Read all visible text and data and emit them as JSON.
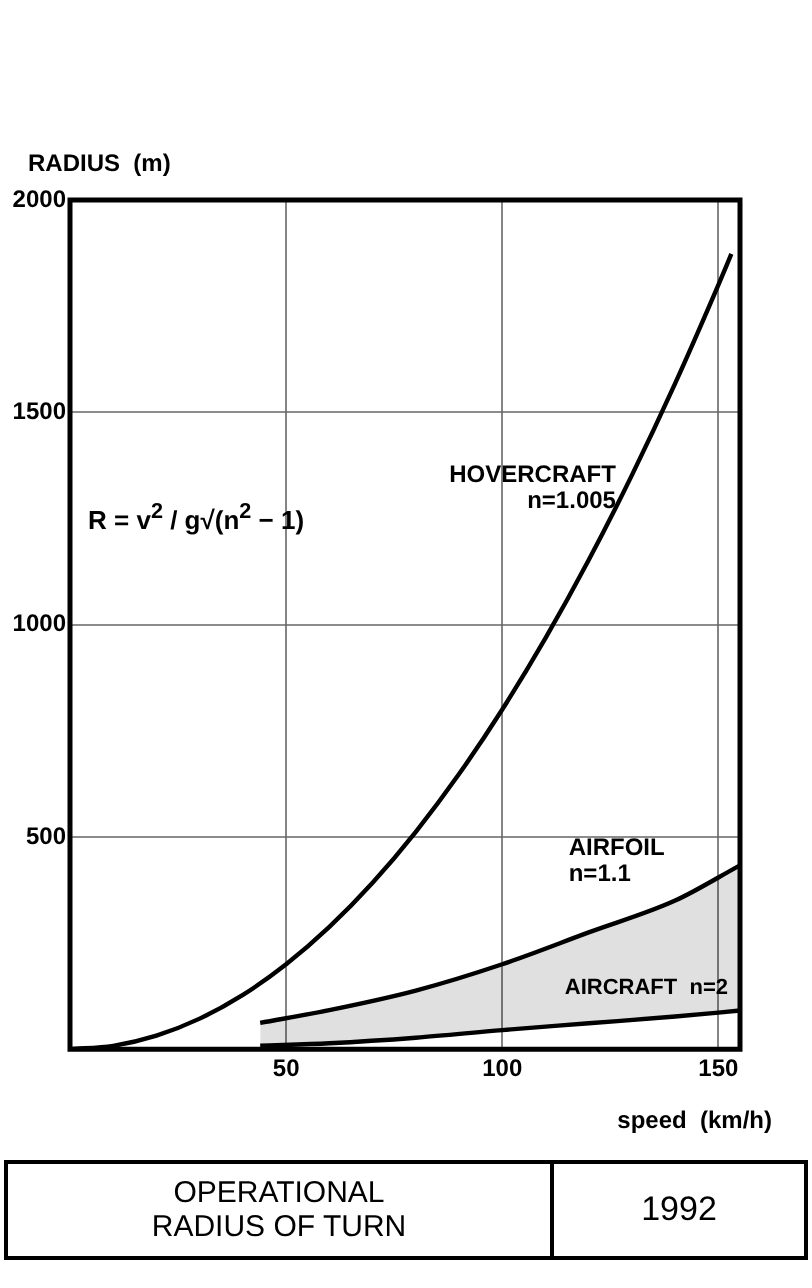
{
  "chart_data": {
    "type": "line",
    "title": "OPERATIONAL\nRADIUS OF TURN",
    "subtitle": "1992",
    "xlabel": "speed  (km/h)",
    "ylabel": "RADIUS  (m)",
    "xlim": [
      0,
      155
    ],
    "xticks": [
      50,
      100,
      150
    ],
    "ylim": [
      0,
      2000
    ],
    "yticks": [
      500,
      1000,
      1500,
      2000
    ],
    "grid": true,
    "legend": false,
    "marker": "none",
    "series": [
      {
        "name": "HOVERCRAFT\nn=1.005",
        "color": "#000000",
        "x": [
          0,
          10,
          20,
          30,
          40,
          50,
          60,
          70,
          80,
          90,
          100,
          110,
          120,
          130,
          140,
          150,
          153
        ],
        "values": [
          0,
          8,
          32,
          72,
          128,
          200,
          288,
          392,
          512,
          648,
          800,
          968,
          1152,
          1352,
          1568,
          1800,
          1873
        ]
      },
      {
        "name": "AIRFOIL\nn=1.1",
        "color": "#000000",
        "x": [
          44,
          60,
          80,
          100,
          120,
          140,
          155
        ],
        "values": [
          62,
          92,
          138,
          200,
          275,
          350,
          433
        ],
        "lower": [
          8,
          14,
          27,
          45,
          61,
          77,
          91
        ],
        "upper": [
          62,
          92,
          138,
          200,
          275,
          350,
          433
        ]
      },
      {
        "name": "AIRCRAFT  n=2",
        "color": "#000000",
        "x": [
          44,
          60,
          80,
          100,
          120,
          140,
          155
        ],
        "values": [
          8,
          14,
          27,
          45,
          61,
          77,
          91
        ]
      }
    ],
    "annotations": [
      "R = v$^{2}$ / g√(n$^{2}$ − 1)"
    ]
  }
}
